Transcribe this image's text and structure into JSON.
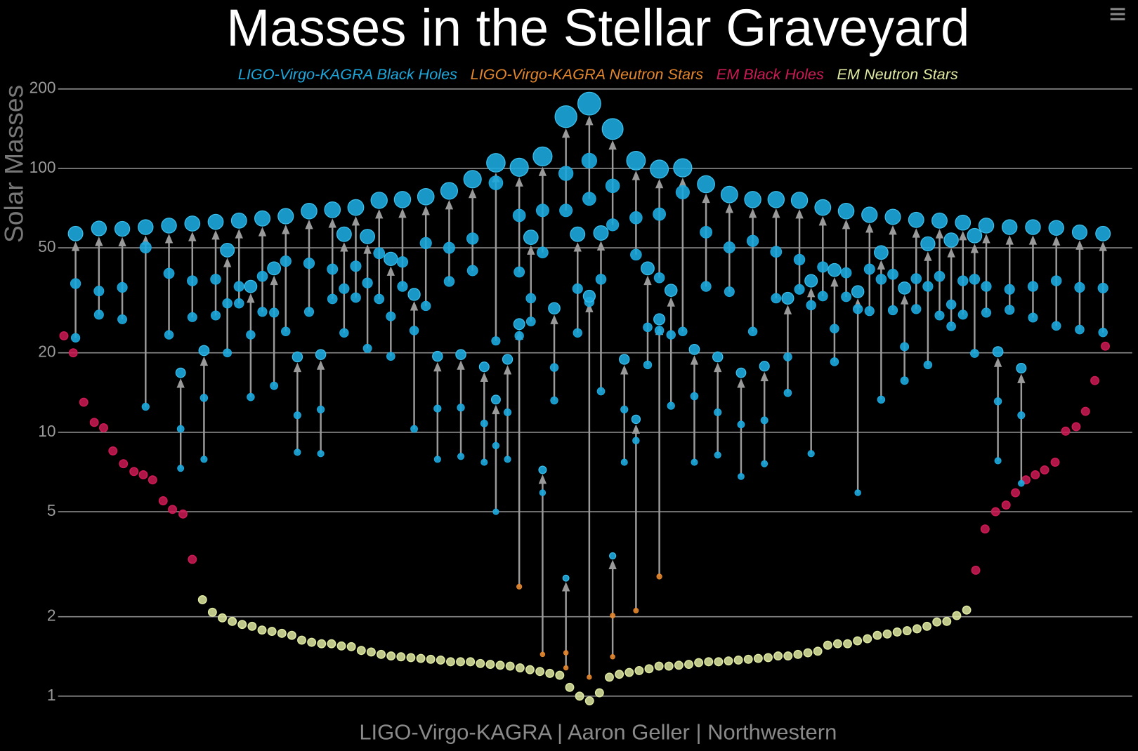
{
  "chart_data": {
    "type": "scatter",
    "title": "Masses in the Stellar Graveyard",
    "y_label": "Solar Masses",
    "footer": "LIGO-Virgo-KAGRA | Aaron Geller | Northwestern",
    "log_y": true,
    "grid": true,
    "legend": "top",
    "ylim": [
      0.9,
      210
    ],
    "yticks": [
      1,
      2,
      5,
      10,
      20,
      50,
      100,
      200
    ],
    "xlim": [
      -1.5,
      90.5
    ],
    "series": [
      {
        "name": "LIGO-Virgo-KAGRA Black Holes",
        "color": "#1ca8dd",
        "x": [
          0,
          2,
          4,
          6,
          8,
          9,
          10,
          11,
          12,
          13,
          14,
          15,
          16,
          17,
          18,
          19,
          20,
          21,
          22,
          23,
          24,
          25,
          26,
          27,
          28,
          29,
          30,
          31,
          32,
          33,
          34,
          35,
          36,
          36,
          37,
          38,
          39,
          40,
          41,
          42,
          43,
          44,
          45,
          46,
          47,
          48,
          49,
          50,
          51,
          52,
          53,
          54,
          55,
          56,
          57,
          58,
          59,
          60,
          61,
          62,
          63,
          64,
          65,
          66,
          67,
          68,
          69,
          70,
          71,
          72,
          73,
          74,
          75,
          76,
          77,
          78,
          79,
          80,
          81,
          82,
          84,
          86,
          88,
          38,
          40,
          42,
          44,
          46,
          48,
          50
        ],
        "final": [
          56.6,
          59.2,
          59,
          59.9,
          60.7,
          16.8,
          61.8,
          20.4,
          62.7,
          49,
          63.4,
          35.7,
          64.6,
          41.8,
          65.9,
          19.3,
          68.9,
          19.7,
          69.7,
          56.3,
          71.1,
          55.2,
          75.7,
          45.4,
          76.2,
          33.3,
          78.1,
          19.4,
          82.2,
          19.7,
          91,
          17.7,
          105,
          13.3,
          18.9,
          101,
          54.8,
          111,
          29.5,
          157,
          56.3,
          176,
          56.9,
          141,
          18.9,
          107,
          41.8,
          99.4,
          34.5,
          100.5,
          20.6,
          87.1,
          19.3,
          79.6,
          16.8,
          76.2,
          17.8,
          76.2,
          32.2,
          75.7,
          37.5,
          71.1,
          41.2,
          68.9,
          34.1,
          66.7,
          48,
          65.5,
          35.2,
          63.8,
          51.8,
          63.4,
          53.5,
          62.3,
          55.6,
          60.7,
          20.2,
          59.9,
          17.5,
          59.9,
          59.5,
          57.3,
          56.6,
          25.7,
          7.2,
          2.8,
          32.8,
          3.4,
          11.2,
          26.8
        ],
        "m1": [
          36.6,
          34.3,
          35.4,
          50.2,
          40,
          10.3,
          37.5,
          13.5,
          38,
          30.8,
          35.7,
          23.4,
          39,
          28.4,
          44.5,
          11.6,
          43.7,
          12.2,
          41.5,
          35,
          42.6,
          36.8,
          47.7,
          27.5,
          44.2,
          24.3,
          52.1,
          12.3,
          50,
          12.4,
          54.2,
          10.8,
          88.1,
          8.9,
          11.9,
          66.3,
          32.2,
          69.3,
          17.6,
          95.7,
          35,
          107,
          38,
          85.9,
          12.2,
          65,
          25,
          67.1,
          23.4,
          81.2,
          13.7,
          57.3,
          11.9,
          50.2,
          10.7,
          53.1,
          11.1,
          48.3,
          19.3,
          45.1,
          30.3,
          42.3,
          24.7,
          40.2,
          29.3,
          41.5,
          38,
          39.7,
          21.1,
          38.2,
          35.7,
          39,
          30.5,
          37.5,
          38,
          35.7,
          13.1,
          34.8,
          11.6,
          35.7,
          37.5,
          35.4,
          35.2,
          23.2,
          5.9,
          null,
          31.2,
          null,
          9.3,
          24.3
        ],
        "m2": [
          22.8,
          27.9,
          26.8,
          12.5,
          23.4,
          7.3,
          27.3,
          7.9,
          27.7,
          20,
          30.8,
          13.6,
          28.6,
          15,
          24.1,
          8.4,
          28.6,
          8.3,
          32,
          23.8,
          32.4,
          20.8,
          32,
          19.4,
          35.7,
          10.3,
          30.1,
          7.9,
          37.3,
          8.1,
          41,
          7.7,
          22.2,
          5.0,
          7.9,
          40.5,
          26.3,
          48,
          13.2,
          69.3,
          23.8,
          76.7,
          14.3,
          61.1,
          7.7,
          47.1,
          18,
          38.5,
          12.6,
          24.1,
          7.7,
          35.7,
          8.2,
          34.1,
          6.8,
          24.1,
          7.6,
          32.2,
          14.1,
          34.8,
          8.3,
          32.8,
          18.5,
          32.6,
          5.9,
          28.8,
          13.3,
          29,
          15.7,
          29.3,
          18,
          27.7,
          25.2,
          27.9,
          19.9,
          28.4,
          7.8,
          29.1,
          6.4,
          27.2,
          25.3,
          24.5,
          23.9,
          null,
          null,
          null,
          null,
          null,
          null,
          null
        ]
      },
      {
        "name": "LIGO-Virgo-KAGRA Neutron Stars",
        "color": "#e3862c",
        "x": [
          38,
          40,
          42,
          44,
          46,
          48,
          50
        ],
        "m1": [
          null,
          null,
          1.46,
          null,
          2.02,
          null,
          null
        ],
        "m2": [
          2.6,
          1.44,
          1.28,
          1.18,
          1.41,
          2.11,
          2.84
        ]
      },
      {
        "name": "EM Black Holes",
        "color": "#cc1a55",
        "x": [
          -1.0,
          -0.2,
          0.7,
          1.6,
          2.4,
          3.2,
          4.1,
          5.0,
          5.8,
          6.6,
          7.5,
          8.3,
          9.2,
          10.0,
          77.1,
          77.9,
          78.8,
          79.7,
          80.5,
          81.4,
          82.2,
          83.0,
          83.9,
          84.8,
          85.7,
          86.5,
          87.3,
          88.2
        ],
        "values": [
          23.2,
          20,
          13,
          10.9,
          10.4,
          8.5,
          7.6,
          7.1,
          6.9,
          6.6,
          5.5,
          5.1,
          4.9,
          3.3,
          3.0,
          4.3,
          5.0,
          5.3,
          5.9,
          6.6,
          6.9,
          7.2,
          7.7,
          10.1,
          10.5,
          12,
          15.7,
          21.2
        ]
      },
      {
        "name": "EM Neutron Stars",
        "color": "#dfe8a0",
        "x": [
          10.87,
          11.72,
          12.57,
          13.42,
          14.27,
          15.12,
          15.97,
          16.82,
          17.67,
          18.52,
          19.37,
          20.22,
          21.07,
          21.92,
          22.77,
          23.62,
          24.47,
          25.32,
          26.17,
          27.02,
          27.87,
          28.72,
          29.57,
          30.42,
          31.27,
          32.12,
          32.97,
          33.82,
          34.67,
          35.52,
          36.37,
          37.22,
          38.07,
          38.92,
          39.77,
          40.62,
          41.47,
          42.32,
          43.17,
          44.02,
          44.87,
          45.72,
          46.57,
          47.42,
          48.27,
          49.12,
          49.97,
          50.82,
          51.67,
          52.52,
          53.37,
          54.22,
          55.07,
          55.92,
          56.77,
          57.62,
          58.47,
          59.32,
          60.17,
          61.02,
          61.87,
          62.72,
          63.57,
          64.42,
          65.27,
          66.12,
          66.97,
          67.82,
          68.67,
          69.52,
          70.37,
          71.22,
          72.07,
          72.92,
          73.77,
          74.62,
          75.47,
          76.32
        ],
        "values": [
          2.32,
          2.08,
          1.98,
          1.92,
          1.87,
          1.84,
          1.78,
          1.76,
          1.73,
          1.7,
          1.63,
          1.6,
          1.58,
          1.58,
          1.55,
          1.54,
          1.49,
          1.47,
          1.44,
          1.42,
          1.41,
          1.4,
          1.39,
          1.38,
          1.37,
          1.35,
          1.35,
          1.35,
          1.33,
          1.32,
          1.31,
          1.3,
          1.28,
          1.26,
          1.24,
          1.22,
          1.2,
          1.08,
          1.0,
          0.96,
          1.03,
          1.18,
          1.21,
          1.23,
          1.25,
          1.27,
          1.3,
          1.3,
          1.31,
          1.32,
          1.34,
          1.35,
          1.35,
          1.36,
          1.37,
          1.38,
          1.39,
          1.4,
          1.42,
          1.42,
          1.44,
          1.46,
          1.48,
          1.56,
          1.58,
          1.58,
          1.62,
          1.65,
          1.7,
          1.72,
          1.75,
          1.77,
          1.8,
          1.84,
          1.91,
          1.92,
          2.02,
          2.12
        ]
      }
    ]
  }
}
